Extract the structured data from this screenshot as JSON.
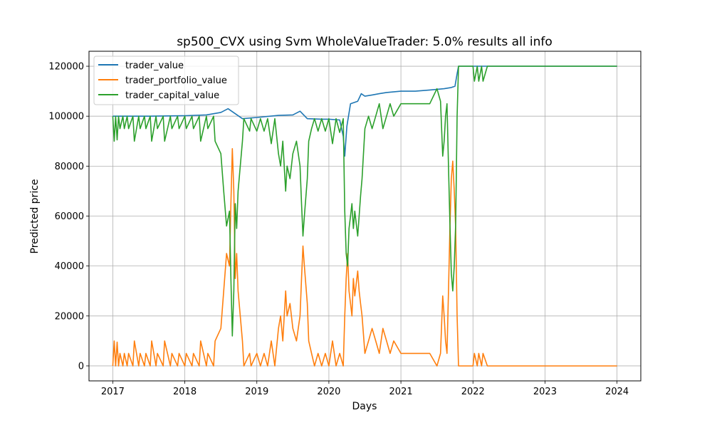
{
  "chart_data": {
    "type": "line",
    "title": "sp500_CVX using Svm WholeValueTrader: 5.0% results all info",
    "xlabel": "Days",
    "ylabel": "Predicted price",
    "xlim": [
      2016.67,
      2024.33
    ],
    "ylim": [
      -6000,
      126000
    ],
    "x_ticks": [
      2017,
      2018,
      2019,
      2020,
      2021,
      2022,
      2023,
      2024
    ],
    "x_tick_labels": [
      "2017",
      "2018",
      "2019",
      "2020",
      "2021",
      "2022",
      "2023",
      "2024"
    ],
    "y_ticks": [
      0,
      20000,
      40000,
      60000,
      80000,
      100000,
      120000
    ],
    "y_tick_labels": [
      "0",
      "20000",
      "40000",
      "60000",
      "80000",
      "100000",
      "120000"
    ],
    "grid": true,
    "legend_position": "top-left",
    "series": [
      {
        "name": "trader_value",
        "color": "#1f77b4",
        "x": [
          2017.0,
          2017.5,
          2018.0,
          2018.3,
          2018.5,
          2018.6,
          2018.7,
          2018.8,
          2019.0,
          2019.3,
          2019.5,
          2019.6,
          2019.7,
          2019.9,
          2020.0,
          2020.15,
          2020.2,
          2020.22,
          2020.25,
          2020.3,
          2020.4,
          2020.45,
          2020.5,
          2020.6,
          2020.7,
          2020.8,
          2021.0,
          2021.2,
          2021.4,
          2021.6,
          2021.7,
          2021.75,
          2021.78,
          2021.8,
          2022.0,
          2023.0,
          2024.0
        ],
        "y": [
          100000,
          100000,
          100200,
          100500,
          101500,
          103000,
          101000,
          99000,
          99500,
          100300,
          100500,
          102000,
          99000,
          98800,
          98800,
          98500,
          92000,
          84000,
          96000,
          105000,
          106000,
          109000,
          108000,
          108500,
          109000,
          109500,
          110000,
          110000,
          110500,
          111000,
          111500,
          112000,
          117000,
          120000,
          120000,
          120000,
          120000
        ]
      },
      {
        "name": "trader_portfolio_value",
        "color": "#ff7f0e",
        "x": [
          2017.0,
          2017.02,
          2017.04,
          2017.06,
          2017.08,
          2017.1,
          2017.14,
          2017.16,
          2017.2,
          2017.22,
          2017.28,
          2017.3,
          2017.36,
          2017.38,
          2017.44,
          2017.46,
          2017.52,
          2017.54,
          2017.6,
          2017.62,
          2017.7,
          2017.72,
          2017.8,
          2017.82,
          2017.9,
          2017.92,
          2018.0,
          2018.02,
          2018.1,
          2018.12,
          2018.2,
          2018.22,
          2018.3,
          2018.32,
          2018.4,
          2018.42,
          2018.5,
          2018.54,
          2018.58,
          2018.62,
          2018.64,
          2018.66,
          2018.68,
          2018.7,
          2018.72,
          2018.74,
          2018.8,
          2018.82,
          2018.9,
          2018.92,
          2019.0,
          2019.05,
          2019.1,
          2019.15,
          2019.2,
          2019.25,
          2019.3,
          2019.33,
          2019.36,
          2019.4,
          2019.42,
          2019.46,
          2019.5,
          2019.55,
          2019.6,
          2019.62,
          2019.64,
          2019.66,
          2019.7,
          2019.72,
          2019.76,
          2019.8,
          2019.85,
          2019.9,
          2019.95,
          2020.0,
          2020.05,
          2020.1,
          2020.15,
          2020.2,
          2020.22,
          2020.24,
          2020.26,
          2020.28,
          2020.3,
          2020.32,
          2020.34,
          2020.36,
          2020.4,
          2020.42,
          2020.44,
          2020.46,
          2020.5,
          2020.55,
          2020.6,
          2020.65,
          2020.7,
          2020.75,
          2020.8,
          2020.85,
          2020.9,
          2021.0,
          2021.1,
          2021.2,
          2021.3,
          2021.4,
          2021.5,
          2021.55,
          2021.58,
          2021.6,
          2021.62,
          2021.64,
          2021.66,
          2021.68,
          2021.7,
          2021.72,
          2021.74,
          2021.76,
          2021.78,
          2021.8,
          2022.0,
          2022.02,
          2022.06,
          2022.08,
          2022.12,
          2022.14,
          2022.2,
          2023.0,
          2024.0
        ],
        "y": [
          0,
          10000,
          0,
          9500,
          0,
          5000,
          0,
          5000,
          0,
          5000,
          0,
          10000,
          0,
          5000,
          0,
          5000,
          0,
          10000,
          0,
          5000,
          0,
          10000,
          0,
          5000,
          0,
          5000,
          0,
          5000,
          0,
          5000,
          0,
          10000,
          0,
          5000,
          0,
          10000,
          15000,
          30000,
          45000,
          40000,
          65000,
          87000,
          70000,
          35000,
          45000,
          30000,
          10000,
          0,
          5000,
          0,
          5000,
          0,
          5000,
          0,
          10000,
          0,
          15000,
          20000,
          10000,
          30000,
          20000,
          25000,
          15000,
          10000,
          20000,
          35000,
          48000,
          40000,
          25000,
          10000,
          5000,
          0,
          5000,
          0,
          5000,
          0,
          10000,
          0,
          5000,
          0,
          20000,
          35000,
          45000,
          30000,
          25000,
          20000,
          35000,
          28000,
          38000,
          30000,
          25000,
          20000,
          5000,
          10000,
          15000,
          10000,
          5000,
          15000,
          10000,
          5000,
          10000,
          5000,
          5000,
          5000,
          5000,
          5000,
          0,
          5000,
          28000,
          20000,
          10000,
          5000,
          30000,
          55000,
          75000,
          82000,
          70000,
          55000,
          20000,
          0,
          0,
          5000,
          0,
          5000,
          0,
          5000,
          0,
          0,
          0
        ]
      },
      {
        "name": "trader_capital_value",
        "color": "#2ca02c",
        "x": [
          2017.0,
          2017.02,
          2017.04,
          2017.06,
          2017.08,
          2017.1,
          2017.14,
          2017.16,
          2017.2,
          2017.22,
          2017.28,
          2017.3,
          2017.36,
          2017.38,
          2017.44,
          2017.46,
          2017.52,
          2017.54,
          2017.6,
          2017.62,
          2017.7,
          2017.72,
          2017.8,
          2017.82,
          2017.9,
          2017.92,
          2018.0,
          2018.02,
          2018.1,
          2018.12,
          2018.2,
          2018.22,
          2018.3,
          2018.32,
          2018.4,
          2018.42,
          2018.5,
          2018.54,
          2018.58,
          2018.62,
          2018.64,
          2018.66,
          2018.68,
          2018.7,
          2018.72,
          2018.74,
          2018.8,
          2018.82,
          2018.9,
          2018.92,
          2019.0,
          2019.05,
          2019.1,
          2019.15,
          2019.2,
          2019.25,
          2019.3,
          2019.33,
          2019.36,
          2019.4,
          2019.42,
          2019.46,
          2019.5,
          2019.55,
          2019.6,
          2019.62,
          2019.64,
          2019.66,
          2019.7,
          2019.72,
          2019.76,
          2019.8,
          2019.85,
          2019.9,
          2019.95,
          2020.0,
          2020.05,
          2020.1,
          2020.15,
          2020.2,
          2020.22,
          2020.24,
          2020.26,
          2020.28,
          2020.3,
          2020.32,
          2020.34,
          2020.36,
          2020.4,
          2020.42,
          2020.44,
          2020.46,
          2020.5,
          2020.55,
          2020.6,
          2020.65,
          2020.7,
          2020.75,
          2020.8,
          2020.85,
          2020.9,
          2021.0,
          2021.1,
          2021.2,
          2021.3,
          2021.4,
          2021.5,
          2021.55,
          2021.58,
          2021.6,
          2021.62,
          2021.64,
          2021.66,
          2021.68,
          2021.7,
          2021.72,
          2021.74,
          2021.76,
          2021.78,
          2021.8,
          2022.0,
          2022.02,
          2022.06,
          2022.08,
          2022.12,
          2022.14,
          2022.2,
          2023.0,
          2024.0
        ],
        "y": [
          100000,
          90000,
          100000,
          90500,
          100000,
          95000,
          100000,
          95000,
          100000,
          95000,
          100000,
          90000,
          100000,
          95000,
          100000,
          95000,
          100000,
          90000,
          100000,
          95000,
          100000,
          90000,
          100000,
          95000,
          100000,
          95000,
          100000,
          95000,
          100000,
          95000,
          100000,
          90000,
          100000,
          95000,
          100000,
          90000,
          85000,
          70000,
          56000,
          62000,
          35000,
          12000,
          30000,
          65000,
          55000,
          70000,
          90000,
          99000,
          94000,
          99000,
          94000,
          99000,
          94000,
          99000,
          89000,
          99000,
          85000,
          80000,
          90000,
          70000,
          80000,
          75000,
          85000,
          90000,
          80000,
          65000,
          52000,
          60000,
          75000,
          90000,
          95000,
          99000,
          94000,
          99000,
          94000,
          99000,
          89000,
          99000,
          93500,
          99000,
          62000,
          45000,
          40000,
          55000,
          60000,
          65000,
          55000,
          62000,
          52000,
          60000,
          68000,
          75000,
          95000,
          100000,
          95000,
          100000,
          105000,
          95000,
          100000,
          105000,
          100000,
          105000,
          105000,
          105000,
          105000,
          105000,
          111000,
          106000,
          84000,
          90000,
          100000,
          105000,
          80000,
          57000,
          37000,
          30000,
          40000,
          57000,
          100000,
          120000,
          120000,
          114000,
          120000,
          114000,
          120000,
          114000,
          120000,
          120000,
          120000
        ]
      }
    ]
  }
}
